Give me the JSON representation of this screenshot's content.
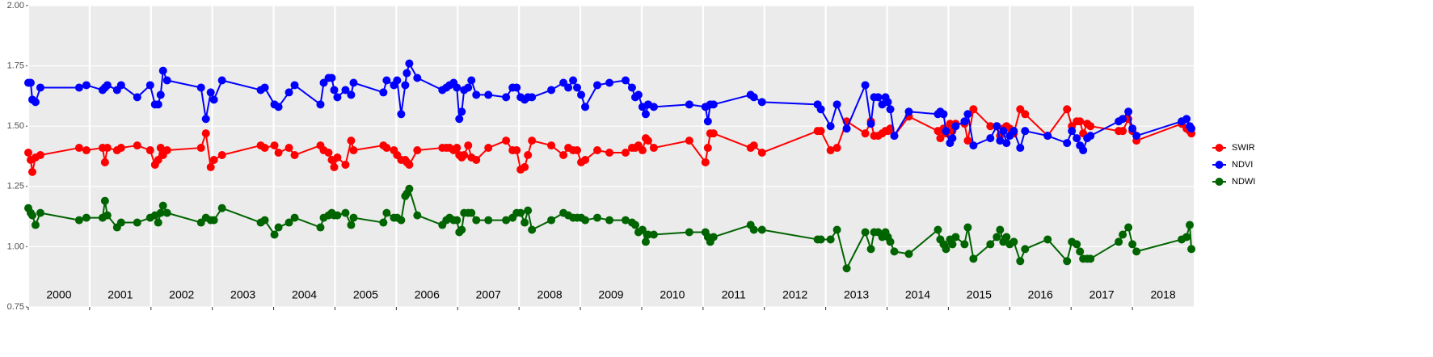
{
  "chart_data": {
    "type": "line",
    "x": [
      2000.0,
      2000.039,
      2000.066,
      2000.118,
      2000.197,
      2000.829,
      2000.947,
      2001.211,
      2001.25,
      2001.289,
      2001.447,
      2001.513,
      2001.776,
      2001.987,
      2002.066,
      2002.118,
      2002.158,
      2002.197,
      2002.263,
      2002.816,
      2002.895,
      2002.974,
      2003.026,
      2003.158,
      2003.789,
      2003.855,
      2004.013,
      2004.079,
      2004.25,
      2004.342,
      2004.763,
      2004.816,
      2004.895,
      2004.947,
      2004.987,
      2005.039,
      2005.171,
      2005.263,
      2005.303,
      2005.789,
      2005.842,
      2005.961,
      2006.013,
      2006.079,
      2006.145,
      2006.171,
      2006.211,
      2006.342,
      2006.75,
      2006.816,
      2006.868,
      2006.934,
      2006.987,
      2007.026,
      2007.066,
      2007.105,
      2007.171,
      2007.224,
      2007.303,
      2007.5,
      2007.789,
      2007.895,
      2007.961,
      2008.026,
      2008.092,
      2008.145,
      2008.211,
      2008.526,
      2008.724,
      2008.803,
      2008.882,
      2008.947,
      2009.013,
      2009.079,
      2009.276,
      2009.474,
      2009.737,
      2009.842,
      2009.895,
      2009.947,
      2010.013,
      2010.066,
      2010.105,
      2010.197,
      2010.776,
      2011.039,
      2011.079,
      2011.118,
      2011.171,
      2011.776,
      2011.829,
      2011.961,
      2012.868,
      2012.921,
      2013.079,
      2013.184,
      2013.342,
      2013.645,
      2013.737,
      2013.789,
      2013.855,
      2013.921,
      2013.974,
      2014.013,
      2014.053,
      2014.118,
      2014.355,
      2014.829,
      2014.868,
      2014.921,
      2014.961,
      2015.026,
      2015.066,
      2015.118,
      2015.263,
      2015.316,
      2015.408,
      2015.684,
      2015.789,
      2015.842,
      2015.895,
      2015.947,
      2016.0,
      2016.066,
      2016.171,
      2016.25,
      2016.618,
      2016.934,
      2017.013,
      2017.092,
      2017.145,
      2017.197,
      2017.263,
      2017.316,
      2017.776,
      2017.842,
      2017.934,
      2018.0,
      2018.066,
      2018.803,
      2018.882,
      2018.934,
      2018.961
    ],
    "series": [
      {
        "name": "SWIR",
        "color": "#ff0000",
        "values": [
          1.39,
          1.36,
          1.31,
          1.37,
          1.38,
          1.41,
          1.4,
          1.41,
          1.35,
          1.41,
          1.4,
          1.41,
          1.42,
          1.4,
          1.34,
          1.36,
          1.41,
          1.38,
          1.4,
          1.41,
          1.47,
          1.33,
          1.36,
          1.38,
          1.42,
          1.41,
          1.42,
          1.39,
          1.41,
          1.38,
          1.42,
          1.4,
          1.39,
          1.36,
          1.33,
          1.37,
          1.34,
          1.44,
          1.4,
          1.42,
          1.41,
          1.4,
          1.38,
          1.36,
          1.36,
          1.35,
          1.34,
          1.4,
          1.41,
          1.41,
          1.41,
          1.4,
          1.41,
          1.38,
          1.37,
          1.38,
          1.42,
          1.37,
          1.36,
          1.41,
          1.44,
          1.4,
          1.4,
          1.32,
          1.33,
          1.38,
          1.44,
          1.42,
          1.38,
          1.41,
          1.4,
          1.4,
          1.35,
          1.36,
          1.4,
          1.39,
          1.39,
          1.41,
          1.41,
          1.42,
          1.4,
          1.45,
          1.44,
          1.41,
          1.44,
          1.35,
          1.41,
          1.47,
          1.47,
          1.41,
          1.42,
          1.39,
          1.48,
          1.48,
          1.4,
          1.41,
          1.52,
          1.47,
          1.52,
          1.46,
          1.46,
          1.47,
          1.48,
          1.48,
          1.49,
          1.46,
          1.54,
          1.48,
          1.45,
          1.49,
          1.47,
          1.51,
          1.48,
          1.51,
          1.51,
          1.44,
          1.57,
          1.5,
          1.5,
          1.46,
          1.49,
          1.5,
          1.49,
          1.47,
          1.57,
          1.55,
          1.46,
          1.57,
          1.5,
          1.52,
          1.52,
          1.47,
          1.51,
          1.5,
          1.48,
          1.48,
          1.53,
          1.48,
          1.44,
          1.51,
          1.49,
          1.48,
          1.47
        ]
      },
      {
        "name": "NDVI",
        "color": "#0000ff",
        "values": [
          1.68,
          1.68,
          1.61,
          1.6,
          1.66,
          1.66,
          1.67,
          1.65,
          1.66,
          1.67,
          1.65,
          1.67,
          1.62,
          1.67,
          1.59,
          1.59,
          1.63,
          1.73,
          1.69,
          1.66,
          1.53,
          1.64,
          1.61,
          1.69,
          1.65,
          1.66,
          1.59,
          1.58,
          1.64,
          1.67,
          1.59,
          1.68,
          1.7,
          1.7,
          1.65,
          1.62,
          1.65,
          1.63,
          1.68,
          1.64,
          1.69,
          1.67,
          1.69,
          1.55,
          1.67,
          1.72,
          1.76,
          1.7,
          1.65,
          1.66,
          1.67,
          1.68,
          1.66,
          1.53,
          1.56,
          1.65,
          1.66,
          1.69,
          1.63,
          1.63,
          1.62,
          1.66,
          1.66,
          1.62,
          1.61,
          1.62,
          1.62,
          1.65,
          1.68,
          1.66,
          1.69,
          1.66,
          1.63,
          1.58,
          1.67,
          1.68,
          1.69,
          1.66,
          1.62,
          1.63,
          1.58,
          1.55,
          1.59,
          1.58,
          1.59,
          1.58,
          1.52,
          1.59,
          1.59,
          1.63,
          1.62,
          1.6,
          1.59,
          1.57,
          1.5,
          1.59,
          1.49,
          1.67,
          1.51,
          1.62,
          1.62,
          1.59,
          1.62,
          1.6,
          1.57,
          1.46,
          1.56,
          1.55,
          1.56,
          1.55,
          1.48,
          1.43,
          1.45,
          1.5,
          1.52,
          1.55,
          1.42,
          1.45,
          1.5,
          1.44,
          1.48,
          1.43,
          1.46,
          1.48,
          1.41,
          1.48,
          1.46,
          1.43,
          1.48,
          1.45,
          1.42,
          1.4,
          1.45,
          1.46,
          1.52,
          1.53,
          1.56,
          1.49,
          1.46,
          1.52,
          1.53,
          1.5,
          1.49
        ]
      },
      {
        "name": "NDWI",
        "color": "#006400",
        "values": [
          1.16,
          1.14,
          1.13,
          1.09,
          1.14,
          1.11,
          1.12,
          1.12,
          1.19,
          1.13,
          1.08,
          1.1,
          1.1,
          1.12,
          1.13,
          1.1,
          1.14,
          1.17,
          1.14,
          1.1,
          1.12,
          1.11,
          1.11,
          1.16,
          1.1,
          1.11,
          1.05,
          1.08,
          1.1,
          1.12,
          1.08,
          1.12,
          1.13,
          1.14,
          1.13,
          1.13,
          1.14,
          1.09,
          1.12,
          1.1,
          1.14,
          1.12,
          1.12,
          1.11,
          1.21,
          1.22,
          1.24,
          1.13,
          1.09,
          1.11,
          1.12,
          1.11,
          1.11,
          1.06,
          1.07,
          1.14,
          1.14,
          1.14,
          1.11,
          1.11,
          1.11,
          1.12,
          1.14,
          1.14,
          1.1,
          1.15,
          1.07,
          1.11,
          1.14,
          1.13,
          1.12,
          1.12,
          1.12,
          1.11,
          1.12,
          1.11,
          1.11,
          1.1,
          1.09,
          1.06,
          1.07,
          1.02,
          1.05,
          1.05,
          1.06,
          1.06,
          1.04,
          1.02,
          1.04,
          1.09,
          1.07,
          1.07,
          1.03,
          1.03,
          1.03,
          1.07,
          0.91,
          1.06,
          0.99,
          1.06,
          1.06,
          1.04,
          1.06,
          1.04,
          1.02,
          0.98,
          0.97,
          1.07,
          1.03,
          1.01,
          0.99,
          1.03,
          1.01,
          1.04,
          1.01,
          1.08,
          0.95,
          1.01,
          1.04,
          1.07,
          1.02,
          1.04,
          1.01,
          1.02,
          0.94,
          0.99,
          1.03,
          0.94,
          1.02,
          1.01,
          0.98,
          0.95,
          0.95,
          0.95,
          1.02,
          1.05,
          1.08,
          1.01,
          0.98,
          1.03,
          1.04,
          1.09,
          0.99
        ]
      }
    ],
    "xlim": [
      2000,
      2019
    ],
    "xticks": [
      2000,
      2001,
      2002,
      2003,
      2004,
      2005,
      2006,
      2007,
      2008,
      2009,
      2010,
      2011,
      2012,
      2013,
      2014,
      2015,
      2016,
      2017,
      2018
    ],
    "ylim": [
      0.75,
      2.0
    ],
    "yticks": [
      0.75,
      {
        "value": 1,
        "label": "1.00"
      },
      1.25,
      {
        "value": 1.5,
        "label": "1.50"
      },
      1.75,
      {
        "value": 2,
        "label": "2.00"
      }
    ],
    "grid": true,
    "legend": "right"
  }
}
